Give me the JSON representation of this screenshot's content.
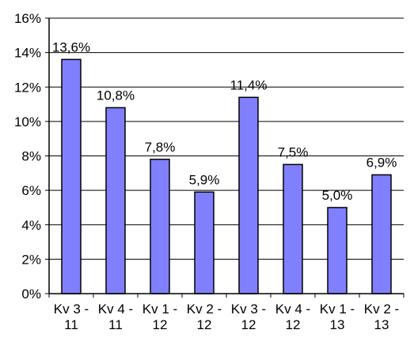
{
  "chart_data": {
    "type": "bar",
    "categories": [
      [
        "Kv 3 -",
        "11"
      ],
      [
        "Kv 4 -",
        "11"
      ],
      [
        "Kv 1 -",
        "12"
      ],
      [
        "Kv 2 -",
        "12"
      ],
      [
        "Kv 3 -",
        "12"
      ],
      [
        "Kv 4 -",
        "12"
      ],
      [
        "Kv 1 -",
        "13"
      ],
      [
        "Kv 2 -",
        "13"
      ]
    ],
    "values": [
      13.6,
      10.8,
      7.8,
      5.9,
      11.4,
      7.5,
      5.0,
      6.9
    ],
    "data_labels": [
      "13,6%",
      "10,8%",
      "7,8%",
      "5,9%",
      "11,4%",
      "7,5%",
      "5,0%",
      "6,9%"
    ],
    "y_ticks": [
      0,
      2,
      4,
      6,
      8,
      10,
      12,
      14,
      16
    ],
    "y_tick_labels": [
      "0%",
      "2%",
      "4%",
      "6%",
      "8%",
      "10%",
      "12%",
      "14%",
      "16%"
    ],
    "ylim": [
      0,
      16
    ],
    "grid": true,
    "title": "",
    "xlabel": "",
    "ylabel": "",
    "colors": {
      "bar_fill": "#8080ff",
      "bar_stroke": "#000000",
      "grid": "#000000",
      "axis": "#000000"
    }
  }
}
